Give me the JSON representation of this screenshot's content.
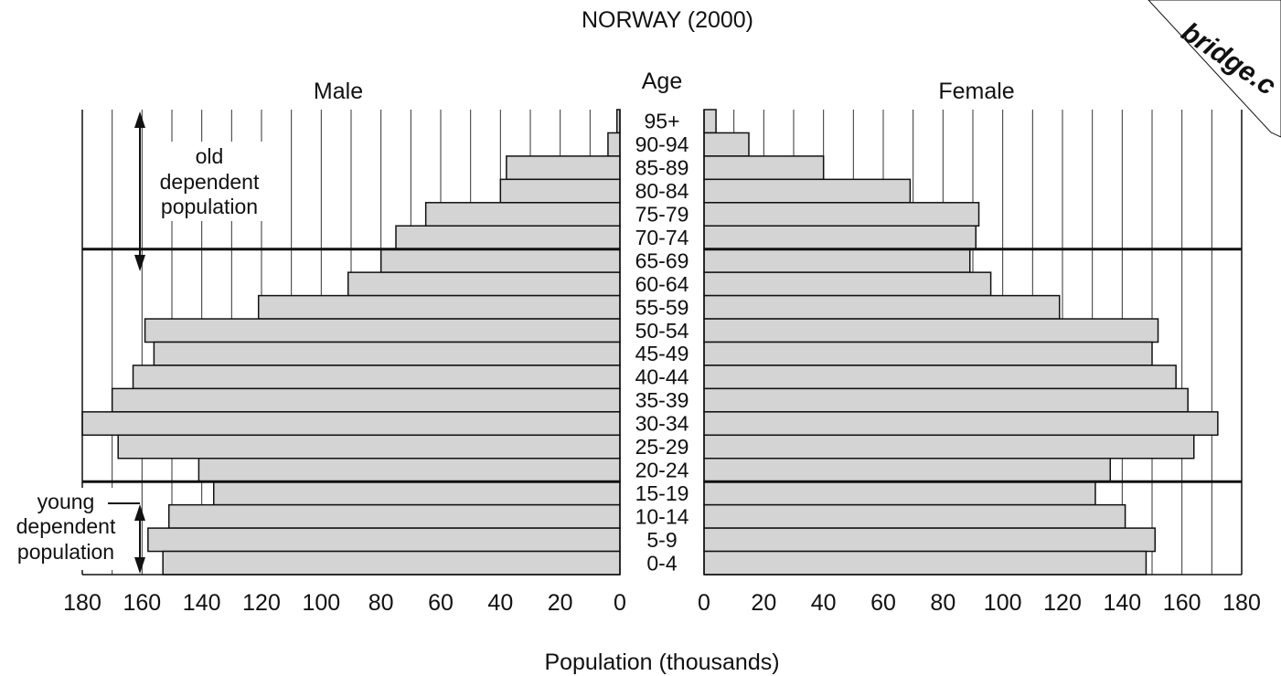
{
  "chart_data": {
    "type": "bar",
    "orientation": "population-pyramid",
    "title": "NORWAY (2000)",
    "age_axis_label": "Age",
    "xlabel": "Population (thousands)",
    "xlim": [
      0,
      180
    ],
    "x_ticks": [
      0,
      20,
      40,
      60,
      80,
      100,
      120,
      140,
      160,
      180
    ],
    "grid": true,
    "categories": [
      "95+",
      "90-94",
      "85-89",
      "80-84",
      "75-79",
      "70-74",
      "65-69",
      "60-64",
      "55-59",
      "50-54",
      "45-49",
      "40-44",
      "35-39",
      "30-34",
      "25-29",
      "20-24",
      "15-19",
      "10-14",
      "5-9",
      "0-4"
    ],
    "series": [
      {
        "name": "Male",
        "values": [
          1,
          4,
          38,
          40,
          65,
          75,
          80,
          91,
          121,
          159,
          156,
          163,
          170,
          180,
          168,
          141,
          136,
          151,
          158,
          153
        ]
      },
      {
        "name": "Female",
        "values": [
          4,
          15,
          40,
          69,
          92,
          91,
          89,
          96,
          119,
          152,
          150,
          158,
          162,
          172,
          164,
          136,
          131,
          141,
          151,
          148
        ]
      }
    ],
    "annotations": [
      {
        "text": [
          "old",
          "dependent",
          "population"
        ],
        "range": [
          "65-69",
          "95+"
        ]
      },
      {
        "text": [
          "young",
          "dependent",
          "population"
        ],
        "range": [
          "0-4",
          "10-14"
        ]
      }
    ],
    "divider_lines_above": [
      "65-69",
      "15-19"
    ],
    "watermark": "bridge.c",
    "bar_color": "#d4d4d4"
  }
}
